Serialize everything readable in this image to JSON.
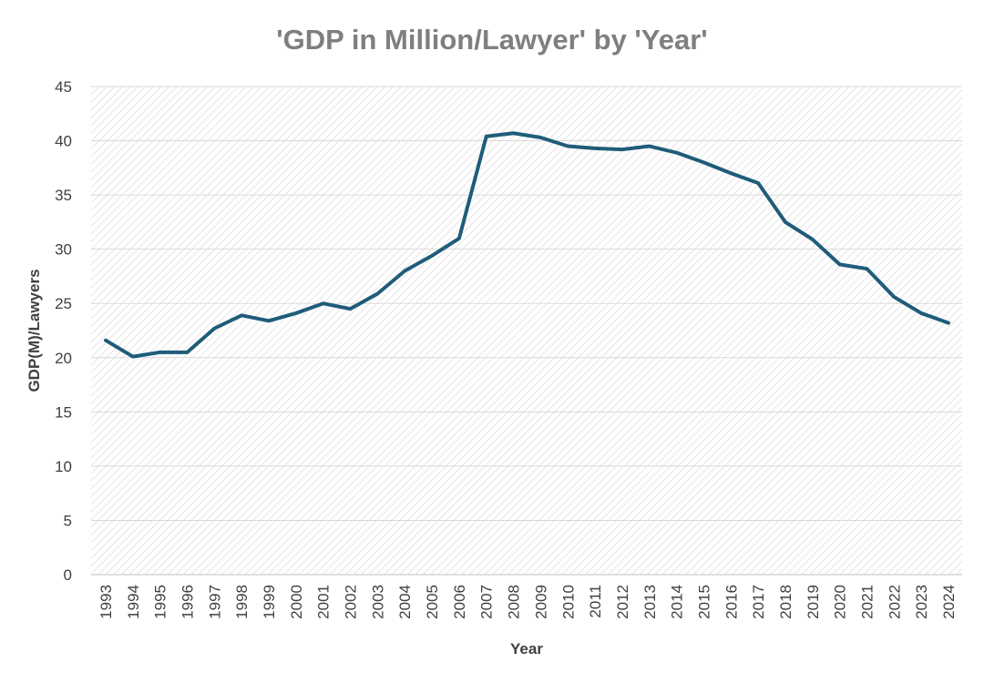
{
  "chart_data": {
    "type": "line",
    "title": "'GDP in Million/Lawyer' by 'Year'",
    "xlabel": "Year",
    "ylabel": "GDP(M)/Lawyers",
    "ylim": [
      0,
      45
    ],
    "yticks": [
      0,
      5,
      10,
      15,
      20,
      25,
      30,
      35,
      40,
      45
    ],
    "grid": true,
    "legend": "none",
    "line_color": "#1f5c7a",
    "categories": [
      "1993",
      "1994",
      "1995",
      "1996",
      "1997",
      "1998",
      "1999",
      "2000",
      "2001",
      "2002",
      "2003",
      "2004",
      "2005",
      "2006",
      "2007",
      "2008",
      "2009",
      "2010",
      "2011",
      "2012",
      "2013",
      "2014",
      "2015",
      "2016",
      "2017",
      "2018",
      "2019",
      "2020",
      "2021",
      "2022",
      "2023",
      "2024"
    ],
    "series": [
      {
        "name": "GDP(M)/Lawyers",
        "values": [
          21.6,
          20.1,
          20.5,
          20.5,
          22.7,
          23.9,
          23.4,
          24.1,
          25.0,
          24.5,
          25.9,
          28.0,
          29.4,
          31.0,
          40.4,
          40.7,
          40.3,
          39.5,
          39.3,
          39.2,
          39.5,
          38.9,
          38.0,
          37.0,
          36.1,
          32.5,
          30.9,
          28.6,
          28.2,
          25.6,
          24.1,
          23.2
        ]
      }
    ]
  }
}
